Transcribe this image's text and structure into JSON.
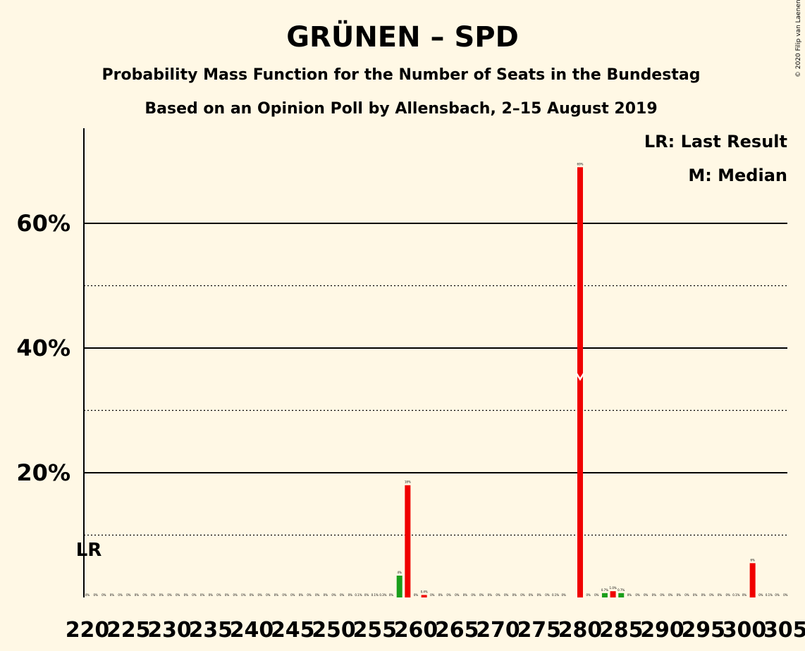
{
  "chart_data": {
    "type": "bar",
    "title": "GRÜNEN – SPD",
    "subtitle_1": "Probability Mass Function for the Number of Seats in the Bundestag",
    "subtitle_2": "Based on an Opinion Poll by Allensbach, 2–15 August 2019",
    "credit": "© 2020 Filip van Laenen",
    "legend": {
      "last_result": "LR: Last Result",
      "median": "M: Median",
      "placement": "top-right"
    },
    "last_result_marker": {
      "label": "LR",
      "seats": 220
    },
    "median_marker": {
      "label": "M",
      "seats": 280
    },
    "xlim": [
      220,
      305
    ],
    "ylim": [
      0,
      75
    ],
    "x_ticks": [
      220,
      225,
      230,
      235,
      240,
      245,
      250,
      255,
      260,
      265,
      270,
      275,
      280,
      285,
      290,
      295,
      300,
      305
    ],
    "x_tick_labels": [
      "220",
      "225",
      "230",
      "235",
      "240",
      "245",
      "250",
      "255",
      "260",
      "265",
      "270",
      "275",
      "280",
      "285",
      "290",
      "295",
      "300",
      "305"
    ],
    "y_major": [
      20,
      40,
      60
    ],
    "y_major_labels": [
      "20%",
      "40%",
      "60%"
    ],
    "y_minor": [
      10,
      30,
      50
    ],
    "colors": {
      "background": "#FFF8E5",
      "bar_red": "#F00000",
      "bar_green": "#1A9E1A",
      "axis": "#000000",
      "median_mark": "#FFFFFF"
    },
    "bars": [
      {
        "seats": 258,
        "value": 3.5,
        "color": "green",
        "label": "4%"
      },
      {
        "seats": 259,
        "value": 18,
        "color": "red",
        "label": "18%"
      },
      {
        "seats": 261,
        "value": 0.4,
        "color": "red",
        "label": "0.4%"
      },
      {
        "seats": 280,
        "value": 69,
        "color": "red",
        "label": "69%"
      },
      {
        "seats": 283,
        "value": 0.7,
        "color": "green",
        "label": "0.7%"
      },
      {
        "seats": 284,
        "value": 1.0,
        "color": "red",
        "label": "1.0%"
      },
      {
        "seats": 285,
        "value": 0.7,
        "color": "green",
        "label": "0.7%"
      },
      {
        "seats": 301,
        "value": 5.5,
        "color": "red",
        "label": "6%"
      }
    ],
    "small_labels": [
      {
        "seats": 220,
        "label": "0%"
      },
      {
        "seats": 221,
        "label": "0%"
      },
      {
        "seats": 222,
        "label": "0%"
      },
      {
        "seats": 223,
        "label": "0%"
      },
      {
        "seats": 224,
        "label": "0%"
      },
      {
        "seats": 225,
        "label": "0%"
      },
      {
        "seats": 226,
        "label": "0%"
      },
      {
        "seats": 227,
        "label": "0%"
      },
      {
        "seats": 228,
        "label": "0%"
      },
      {
        "seats": 229,
        "label": "0%"
      },
      {
        "seats": 230,
        "label": "0%"
      },
      {
        "seats": 231,
        "label": "0%"
      },
      {
        "seats": 232,
        "label": "0%"
      },
      {
        "seats": 233,
        "label": "0%"
      },
      {
        "seats": 234,
        "label": "0%"
      },
      {
        "seats": 235,
        "label": "0%"
      },
      {
        "seats": 236,
        "label": "0%"
      },
      {
        "seats": 237,
        "label": "0%"
      },
      {
        "seats": 238,
        "label": "0%"
      },
      {
        "seats": 239,
        "label": "0%"
      },
      {
        "seats": 240,
        "label": "0%"
      },
      {
        "seats": 241,
        "label": "0%"
      },
      {
        "seats": 242,
        "label": "0%"
      },
      {
        "seats": 243,
        "label": "0%"
      },
      {
        "seats": 244,
        "label": "0%"
      },
      {
        "seats": 245,
        "label": "0%"
      },
      {
        "seats": 246,
        "label": "0%"
      },
      {
        "seats": 247,
        "label": "0%"
      },
      {
        "seats": 248,
        "label": "0%"
      },
      {
        "seats": 249,
        "label": "0%"
      },
      {
        "seats": 250,
        "label": "0%"
      },
      {
        "seats": 251,
        "label": "0%"
      },
      {
        "seats": 252,
        "label": "0%"
      },
      {
        "seats": 253,
        "label": "0.1%"
      },
      {
        "seats": 254,
        "label": "0%"
      },
      {
        "seats": 255,
        "label": "0.1%"
      },
      {
        "seats": 256,
        "label": "0.3%"
      },
      {
        "seats": 257,
        "label": "0%"
      },
      {
        "seats": 260,
        "label": "0%"
      },
      {
        "seats": 262,
        "label": "0%"
      },
      {
        "seats": 263,
        "label": "0%"
      },
      {
        "seats": 264,
        "label": "0%"
      },
      {
        "seats": 265,
        "label": "0%"
      },
      {
        "seats": 266,
        "label": "0%"
      },
      {
        "seats": 267,
        "label": "0%"
      },
      {
        "seats": 268,
        "label": "0%"
      },
      {
        "seats": 269,
        "label": "0%"
      },
      {
        "seats": 270,
        "label": "0%"
      },
      {
        "seats": 271,
        "label": "0%"
      },
      {
        "seats": 272,
        "label": "0%"
      },
      {
        "seats": 273,
        "label": "0%"
      },
      {
        "seats": 274,
        "label": "0%"
      },
      {
        "seats": 275,
        "label": "0%"
      },
      {
        "seats": 276,
        "label": "0%"
      },
      {
        "seats": 277,
        "label": "0.1%"
      },
      {
        "seats": 278,
        "label": "0%"
      },
      {
        "seats": 281,
        "label": "0%"
      },
      {
        "seats": 282,
        "label": "0%"
      },
      {
        "seats": 286,
        "label": "0%"
      },
      {
        "seats": 287,
        "label": "0%"
      },
      {
        "seats": 288,
        "label": "0%"
      },
      {
        "seats": 289,
        "label": "0%"
      },
      {
        "seats": 290,
        "label": "0%"
      },
      {
        "seats": 291,
        "label": "0%"
      },
      {
        "seats": 292,
        "label": "0%"
      },
      {
        "seats": 293,
        "label": "0%"
      },
      {
        "seats": 294,
        "label": "0%"
      },
      {
        "seats": 295,
        "label": "0%"
      },
      {
        "seats": 296,
        "label": "0%"
      },
      {
        "seats": 297,
        "label": "0%"
      },
      {
        "seats": 298,
        "label": "0%"
      },
      {
        "seats": 299,
        "label": "0.1%"
      },
      {
        "seats": 300,
        "label": "0%"
      },
      {
        "seats": 302,
        "label": "0%"
      },
      {
        "seats": 303,
        "label": "0.1%"
      },
      {
        "seats": 304,
        "label": "0%"
      },
      {
        "seats": 305,
        "label": "0%"
      }
    ]
  }
}
